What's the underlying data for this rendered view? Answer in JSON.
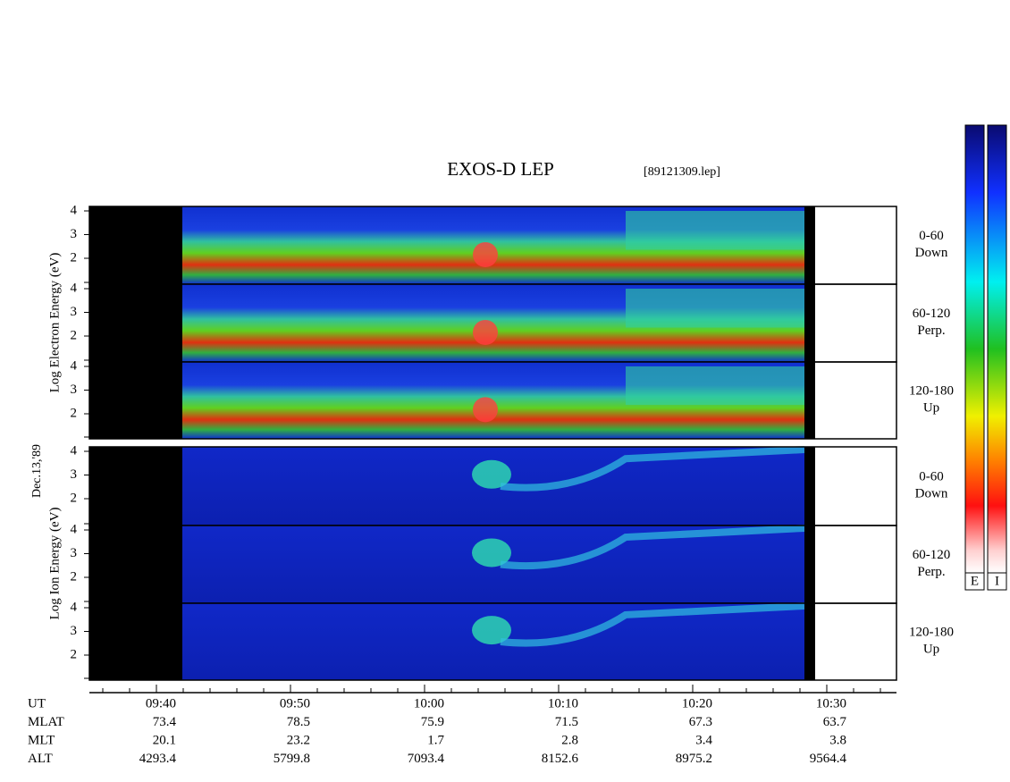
{
  "header": {
    "title": "EXOS-D LEP",
    "file": "[89121309.lep]",
    "date": "Dec.13,'89"
  },
  "groups": [
    {
      "ylabel": "Log  Electron  Energy (eV)",
      "panels": [
        {
          "label": [
            "0-60",
            "Down"
          ],
          "yticks": [
            "4",
            "3",
            "2"
          ]
        },
        {
          "label": [
            "60-120",
            "Perp."
          ],
          "yticks": [
            "4",
            "3",
            "2"
          ]
        },
        {
          "label": [
            "120-180",
            "Up"
          ],
          "yticks": [
            "4",
            "3",
            "2"
          ]
        }
      ]
    },
    {
      "ylabel": "Log  Ion  Energy (eV)",
      "panels": [
        {
          "label": [
            "0-60",
            "Down"
          ],
          "yticks": [
            "4",
            "3",
            "2"
          ]
        },
        {
          "label": [
            "60-120",
            "Perp."
          ],
          "yticks": [
            "4",
            "3",
            "2"
          ]
        },
        {
          "label": [
            "120-180",
            "Up"
          ],
          "yticks": [
            "4",
            "3",
            "2"
          ]
        }
      ]
    }
  ],
  "orbit": {
    "rows": [
      {
        "name": "UT",
        "values": [
          "09:40",
          "09:50",
          "10:00",
          "10:10",
          "10:20",
          "10:30"
        ]
      },
      {
        "name": "MLAT",
        "values": [
          "73.4",
          "78.5",
          "75.9",
          "71.5",
          "67.3",
          "63.7"
        ]
      },
      {
        "name": "MLT",
        "values": [
          "20.1",
          "23.2",
          "1.7",
          "2.8",
          "3.4",
          "3.8"
        ]
      },
      {
        "name": "ALT",
        "values": [
          "4293.4",
          "5799.8",
          "7093.4",
          "8152.6",
          "8975.2",
          "9564.4"
        ]
      }
    ]
  },
  "colorbars": [
    "E",
    "I"
  ]
}
